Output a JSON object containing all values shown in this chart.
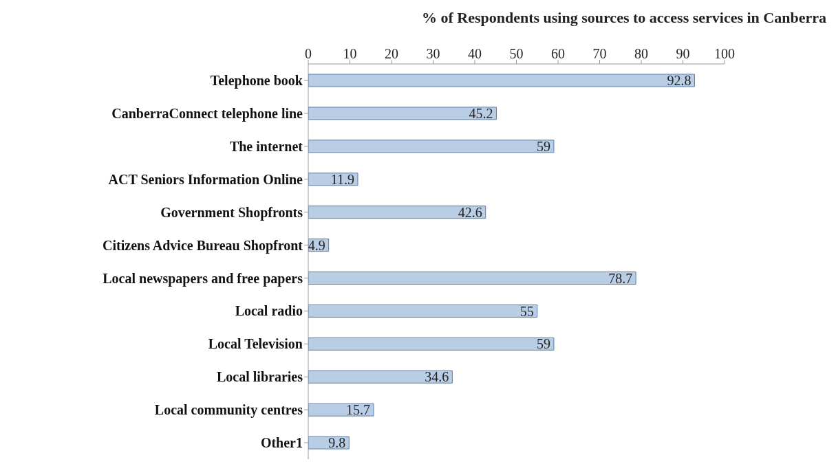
{
  "chart_data": {
    "type": "bar",
    "orientation": "horizontal",
    "title": "% of Respondents using sources to access services in Canberra",
    "categories": [
      "Telephone book",
      "CanberraConnect telephone  line",
      "The internet",
      "ACT Seniors  Information Online",
      "Government Shopfronts",
      "Citizens Advice Bureau  Shopfront",
      "Local newspapers and free papers",
      "Local radio",
      "Local Television",
      "Local libraries",
      "Local community centres",
      "Other1"
    ],
    "values": [
      92.8,
      45.2,
      59,
      11.9,
      42.6,
      4.9,
      78.7,
      55,
      59,
      34.6,
      15.7,
      9.8
    ],
    "color": "#b9cde5",
    "xlim": [
      0,
      100
    ],
    "xticks": [
      0,
      10,
      20,
      30,
      40,
      50,
      60,
      70,
      80,
      90,
      100
    ],
    "data_labels": true
  }
}
